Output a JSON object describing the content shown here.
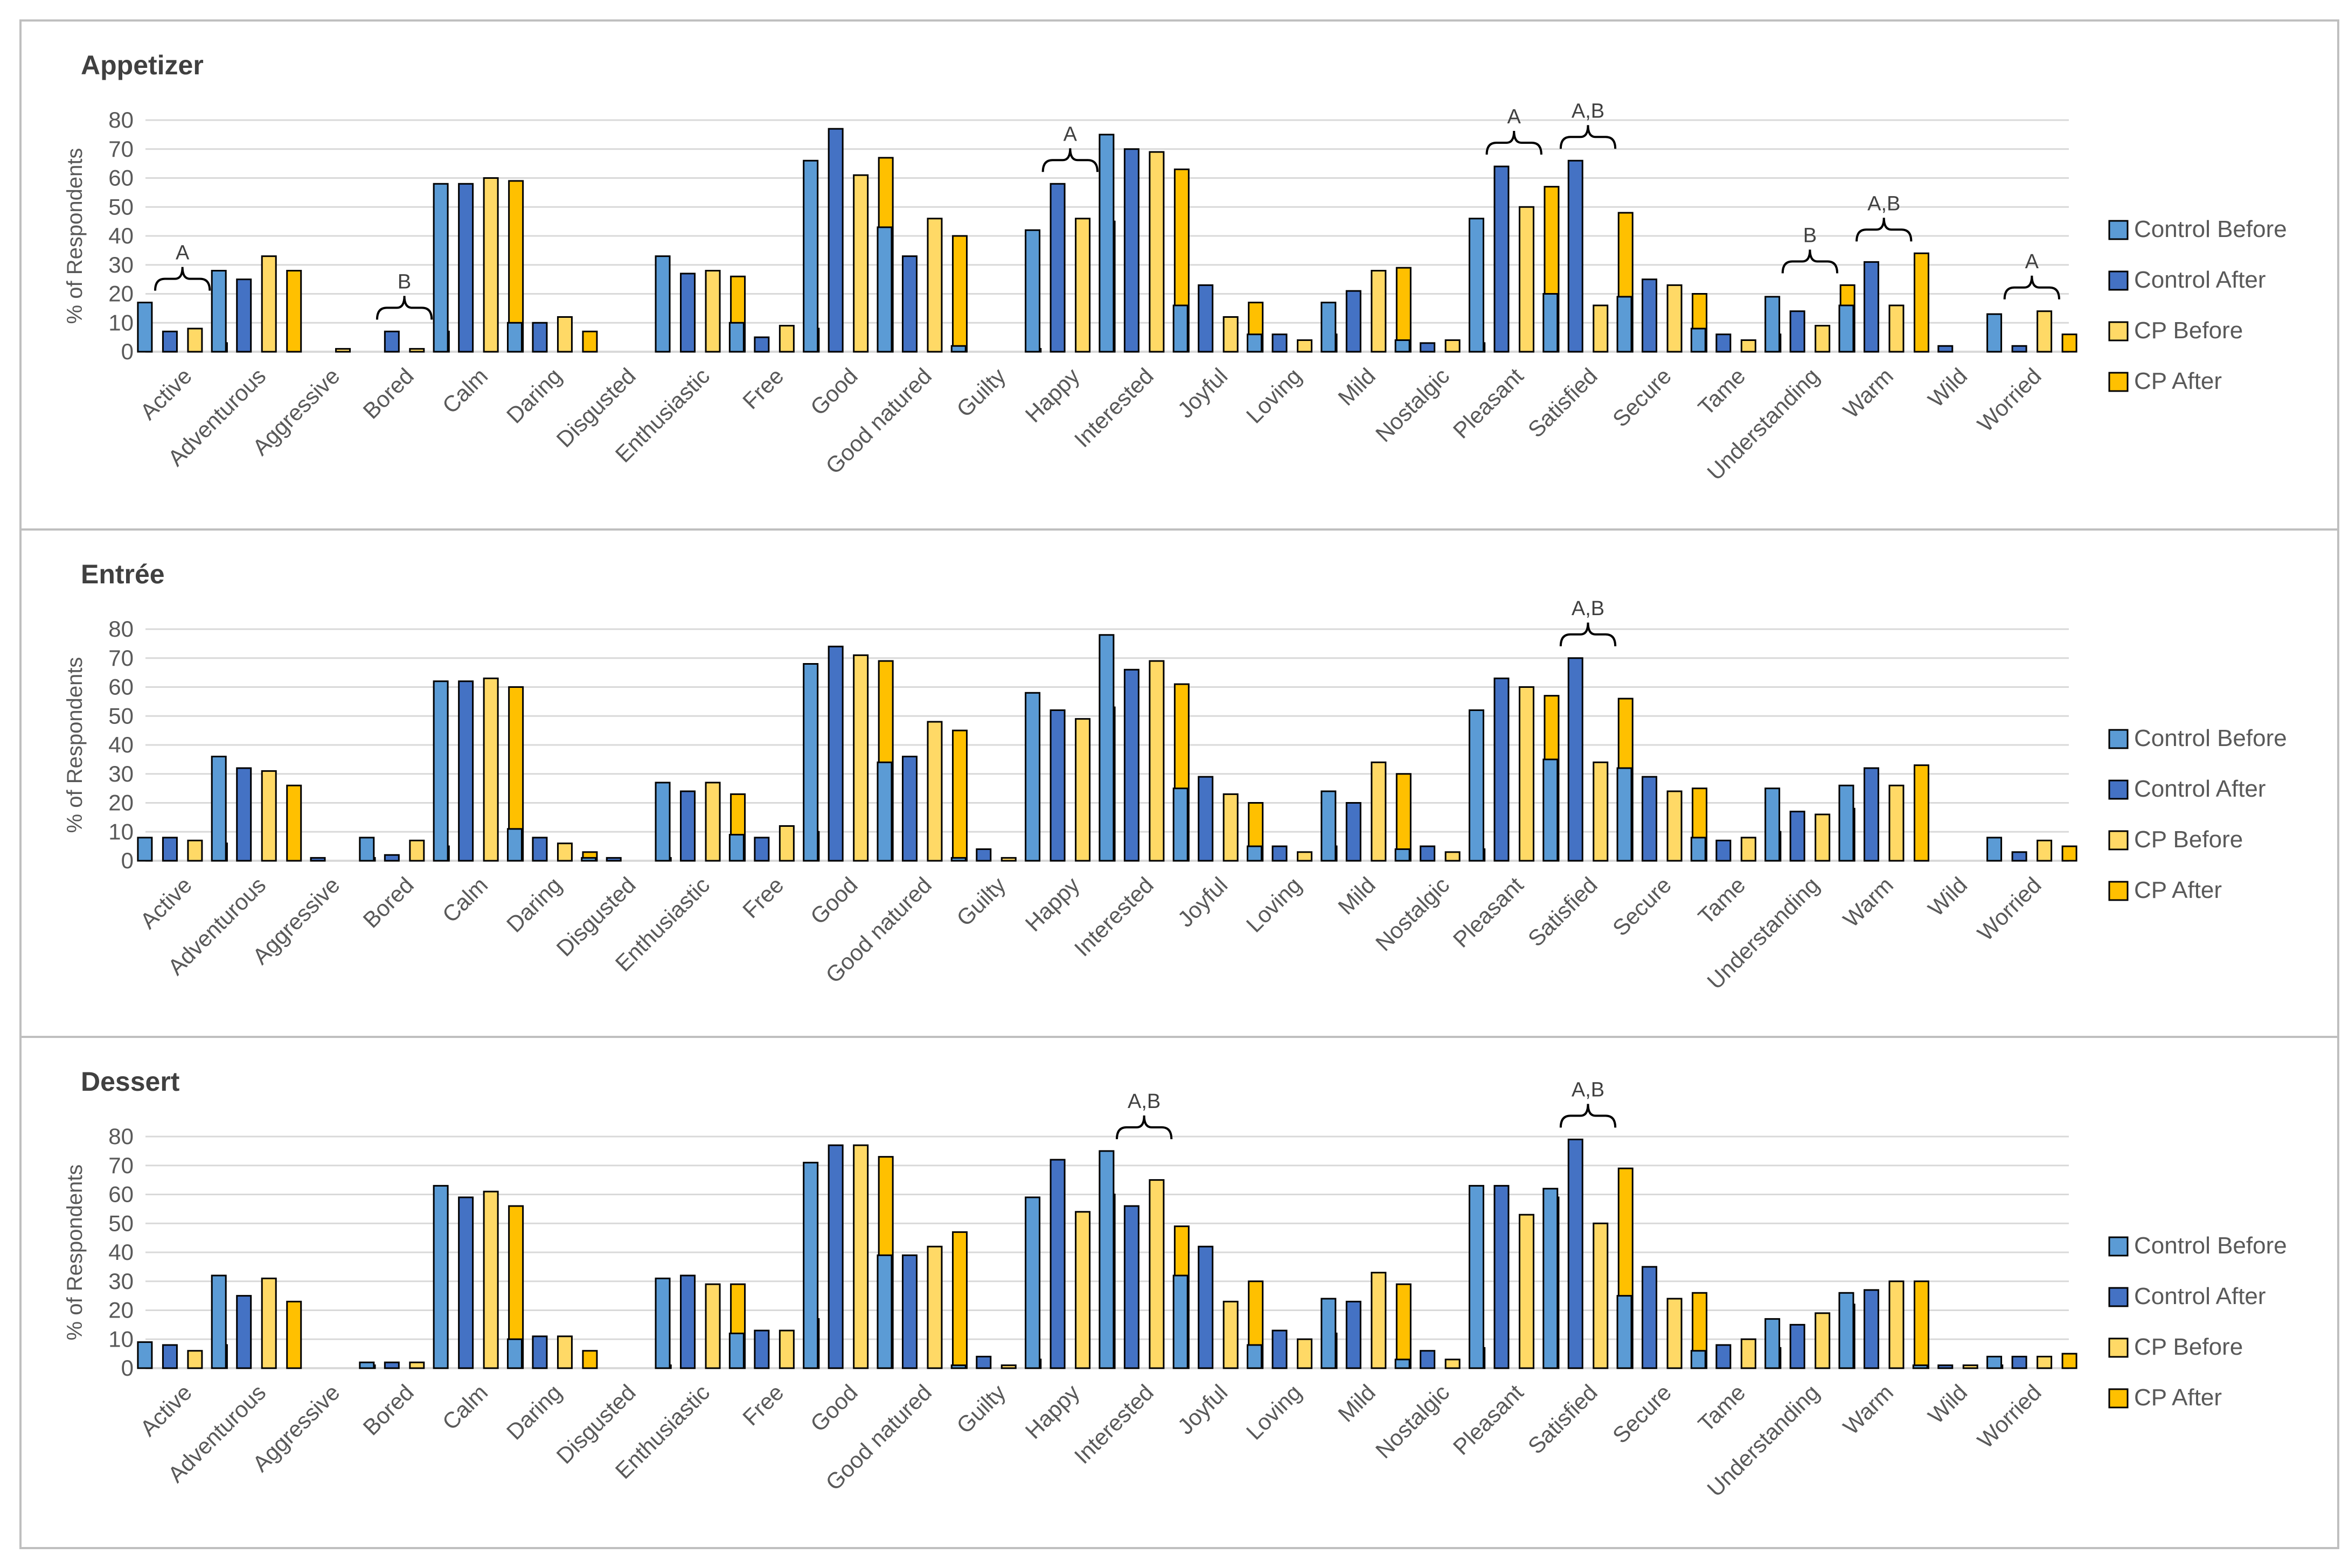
{
  "colors": {
    "control_before": "#5B9BD5",
    "control_after": "#4472C4",
    "cp_before": "#FFD966",
    "cp_after": "#FFC000",
    "bar_edge": "#000000",
    "grid": "#D9D9D9",
    "border": "#BFBFBF"
  },
  "chart_data": [
    {
      "type": "bar",
      "title": "Appetizer",
      "ylabel": "% of Respondents",
      "yticks": [
        "0",
        "10",
        "20",
        "30",
        "40",
        "50",
        "60",
        "70",
        "80"
      ],
      "ylim": [
        0,
        80
      ],
      "grid": true,
      "legend_position": "right",
      "categories": [
        "Active",
        "Adventurous",
        "Aggressive",
        "Bored",
        "Calm",
        "Daring",
        "Disgusted",
        "Enthusiastic",
        "Free",
        "Good",
        "Good natured",
        "Guilty",
        "Happy",
        "Interested",
        "Joyful",
        "Loving",
        "Mild",
        "Nostalgic",
        "Pleasant",
        "Satisfied",
        "Secure",
        "Tame",
        "Understanding",
        "Warm",
        "Wild",
        "Worried"
      ],
      "series": [
        {
          "name": "Control Before",
          "values": [
            17,
            28,
            0,
            0,
            58,
            10,
            0,
            33,
            10,
            66,
            43,
            2,
            42,
            75,
            16,
            6,
            17,
            4,
            46,
            20,
            19,
            8,
            19,
            16,
            0,
            13
          ]
        },
        {
          "name": "Control After",
          "values": [
            7,
            25,
            0,
            7,
            58,
            10,
            0,
            27,
            5,
            77,
            33,
            0,
            58,
            70,
            23,
            6,
            21,
            3,
            64,
            66,
            25,
            6,
            14,
            31,
            2,
            2
          ]
        },
        {
          "name": "CP Before",
          "values": [
            8,
            33,
            1,
            1,
            60,
            12,
            0,
            28,
            9,
            61,
            46,
            0,
            46,
            69,
            12,
            4,
            28,
            4,
            50,
            16,
            23,
            4,
            9,
            16,
            0,
            14
          ]
        },
        {
          "name": "CP After",
          "values": [
            3,
            28,
            0,
            7,
            59,
            7,
            0,
            26,
            8,
            67,
            40,
            1,
            45,
            63,
            17,
            6,
            29,
            3,
            57,
            48,
            20,
            6,
            23,
            34,
            0,
            6
          ]
        }
      ],
      "annotations": [
        {
          "text": "A",
          "span": [
            "Active",
            "Active"
          ]
        },
        {
          "text": "B",
          "span": [
            "Bored",
            "Bored"
          ]
        },
        {
          "text": "A",
          "span": [
            "Happy",
            "Happy"
          ]
        },
        {
          "text": "A",
          "span": [
            "Pleasant",
            "Pleasant"
          ]
        },
        {
          "text": "A,B",
          "span": [
            "Satisfied",
            "Satisfied"
          ]
        },
        {
          "text": "B",
          "span": [
            "Understanding",
            "Understanding"
          ]
        },
        {
          "text": "A,B",
          "span": [
            "Warm",
            "Warm"
          ]
        },
        {
          "text": "A",
          "span": [
            "Worried",
            "Worried"
          ]
        }
      ]
    },
    {
      "type": "bar",
      "title": "Entrée",
      "ylabel": "% of Respondents",
      "yticks": [
        "0",
        "10",
        "20",
        "30",
        "40",
        "50",
        "60",
        "70",
        "80"
      ],
      "ylim": [
        0,
        80
      ],
      "grid": true,
      "legend_position": "right",
      "categories": [
        "Active",
        "Adventurous",
        "Aggressive",
        "Bored",
        "Calm",
        "Daring",
        "Disgusted",
        "Enthusiastic",
        "Free",
        "Good",
        "Good natured",
        "Guilty",
        "Happy",
        "Interested",
        "Joyful",
        "Loving",
        "Mild",
        "Nostalgic",
        "Pleasant",
        "Satisfied",
        "Secure",
        "Tame",
        "Understanding",
        "Warm",
        "Wild",
        "Worried"
      ],
      "series": [
        {
          "name": "Control Before",
          "values": [
            8,
            36,
            0,
            8,
            62,
            11,
            1,
            27,
            9,
            68,
            34,
            1,
            58,
            78,
            25,
            5,
            24,
            4,
            52,
            35,
            32,
            8,
            25,
            26,
            0,
            8
          ]
        },
        {
          "name": "Control After",
          "values": [
            8,
            32,
            1,
            2,
            62,
            8,
            1,
            24,
            8,
            74,
            36,
            4,
            52,
            66,
            29,
            5,
            20,
            5,
            63,
            70,
            29,
            7,
            17,
            32,
            0,
            3
          ]
        },
        {
          "name": "CP Before",
          "values": [
            7,
            31,
            0,
            7,
            63,
            6,
            0,
            27,
            12,
            71,
            48,
            1,
            49,
            69,
            23,
            3,
            34,
            3,
            60,
            34,
            24,
            8,
            16,
            26,
            0,
            7
          ]
        },
        {
          "name": "CP After",
          "values": [
            6,
            26,
            1,
            5,
            60,
            3,
            1,
            23,
            10,
            69,
            45,
            0,
            53,
            61,
            20,
            5,
            30,
            4,
            57,
            56,
            25,
            10,
            18,
            33,
            0,
            5
          ]
        }
      ],
      "annotations": [
        {
          "text": "A,B",
          "span": [
            "Satisfied",
            "Satisfied"
          ]
        }
      ]
    },
    {
      "type": "bar",
      "title": "Dessert",
      "ylabel": "% of Respondents",
      "yticks": [
        "0",
        "10",
        "20",
        "30",
        "40",
        "50",
        "60",
        "70",
        "80"
      ],
      "ylim": [
        0,
        80
      ],
      "grid": true,
      "legend_position": "right",
      "categories": [
        "Active",
        "Adventurous",
        "Aggressive",
        "Bored",
        "Calm",
        "Daring",
        "Disgusted",
        "Enthusiastic",
        "Free",
        "Good",
        "Good natured",
        "Guilty",
        "Happy",
        "Interested",
        "Joyful",
        "Loving",
        "Mild",
        "Nostalgic",
        "Pleasant",
        "Satisfied",
        "Secure",
        "Tame",
        "Understanding",
        "Warm",
        "Wild",
        "Worried"
      ],
      "series": [
        {
          "name": "Control Before",
          "values": [
            9,
            32,
            0,
            2,
            63,
            10,
            0,
            31,
            12,
            71,
            39,
            1,
            59,
            75,
            32,
            8,
            24,
            3,
            63,
            62,
            25,
            6,
            17,
            26,
            1,
            4
          ]
        },
        {
          "name": "Control After",
          "values": [
            8,
            25,
            0,
            2,
            59,
            11,
            0,
            32,
            13,
            77,
            39,
            4,
            72,
            56,
            42,
            13,
            23,
            6,
            63,
            79,
            35,
            8,
            15,
            27,
            1,
            4
          ]
        },
        {
          "name": "CP Before",
          "values": [
            6,
            31,
            0,
            2,
            61,
            11,
            0,
            29,
            13,
            77,
            42,
            1,
            54,
            65,
            23,
            10,
            33,
            3,
            53,
            50,
            24,
            10,
            19,
            30,
            1,
            4
          ]
        },
        {
          "name": "CP After",
          "values": [
            8,
            23,
            1,
            0,
            56,
            6,
            1,
            29,
            17,
            73,
            47,
            3,
            60,
            49,
            30,
            12,
            29,
            7,
            59,
            69,
            26,
            7,
            22,
            30,
            1,
            5
          ]
        }
      ],
      "annotations": [
        {
          "text": "A,B",
          "span": [
            "Interested",
            "Interested"
          ]
        },
        {
          "text": "A,B",
          "span": [
            "Satisfied",
            "Satisfied"
          ]
        }
      ]
    }
  ]
}
